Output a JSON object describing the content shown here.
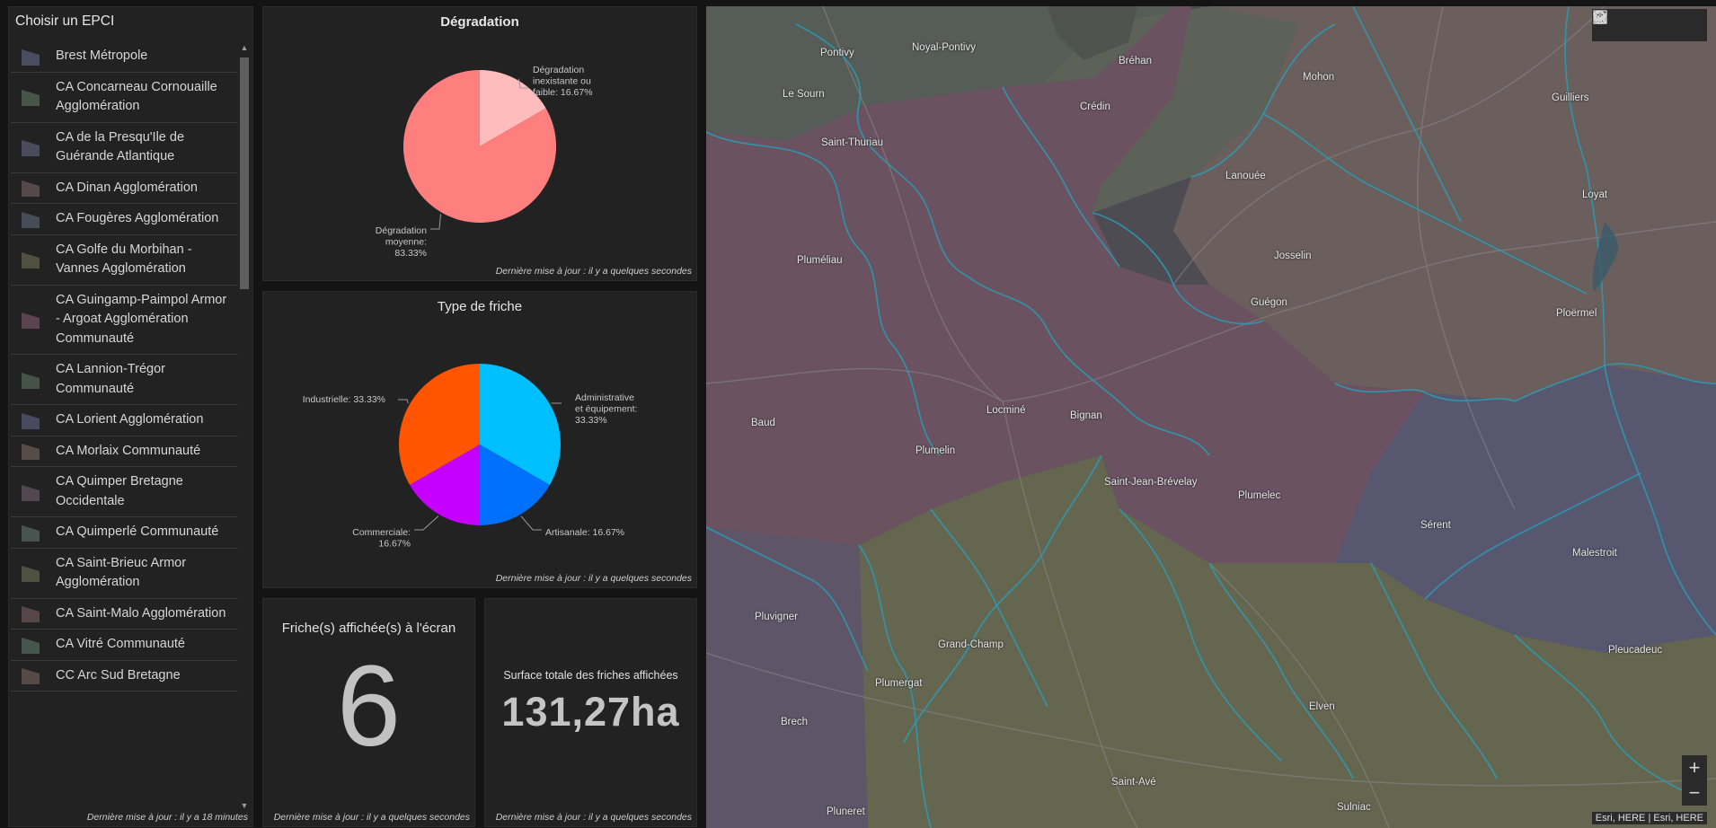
{
  "epci_panel": {
    "title": "Choisir un EPCI",
    "updated": "Dernière mise à jour : il y a 18 minutes",
    "items": [
      {
        "label": "Brest Métropole",
        "color": "#4a4c60"
      },
      {
        "label": "CA Concarneau Cornouaille Agglomération",
        "color": "#465548"
      },
      {
        "label": "CA de la Presqu'Ile de Guérande Atlantique",
        "color": "#4c4a5d"
      },
      {
        "label": "CA Dinan Agglomération",
        "color": "#55494a"
      },
      {
        "label": "CA Fougères Agglomération",
        "color": "#464d58"
      },
      {
        "label": "CA Golfe du Morbihan - Vannes Agglomération",
        "color": "#4f5040"
      },
      {
        "label": "CA Guingamp-Paimpol Armor - Argoat Agglomération Communauté",
        "color": "#5a4450"
      },
      {
        "label": "CA Lannion-Trégor Communauté",
        "color": "#465148"
      },
      {
        "label": "CA Lorient Agglomération",
        "color": "#484a5e"
      },
      {
        "label": "CA Morlaix Communauté",
        "color": "#564c48"
      },
      {
        "label": "CA Quimper Bretagne Occidentale",
        "color": "#524651"
      },
      {
        "label": "CA Quimperlé Communauté",
        "color": "#475450"
      },
      {
        "label": "CA Saint-Brieuc Armor Agglomération",
        "color": "#4e5040"
      },
      {
        "label": "CA Saint-Malo Agglomération",
        "color": "#56464a"
      },
      {
        "label": "CA Vitré Communauté",
        "color": "#44564d"
      },
      {
        "label": "CC Arc Sud Bretagne",
        "color": "#574a46"
      }
    ]
  },
  "degradation_panel": {
    "title": "Dégradation",
    "updated": "Dernière mise à jour : il y a quelques secondes"
  },
  "type_panel": {
    "title": "Type de friche",
    "updated": "Dernière mise à jour : il y a quelques secondes"
  },
  "chart_data": [
    {
      "type": "pie",
      "title": "Dégradation",
      "slices": [
        {
          "label": "Dégradation inexistante ou faible: 16.67%",
          "value": 16.67,
          "color": "#ffbcbc"
        },
        {
          "label": "Dégradation moyenne: 83.33%",
          "value": 83.33,
          "color": "#ff7f7f"
        }
      ]
    },
    {
      "type": "pie",
      "title": "Type de friche",
      "slices": [
        {
          "label": "Administrative et équipement: 33.33%",
          "value": 33.33,
          "color": "#00bfff"
        },
        {
          "label": "Artisanale: 16.67%",
          "value": 16.67,
          "color": "#0070ff"
        },
        {
          "label": "Commerciale: 16.67%",
          "value": 16.67,
          "color": "#c500ff"
        },
        {
          "label": "Industrielle: 33.33%",
          "value": 33.33,
          "color": "#ff5500"
        }
      ]
    }
  ],
  "count_panel": {
    "title": "Friche(s) affichée(s) à l'écran",
    "value": "6",
    "updated": "Dernière mise à jour : il y a quelques secondes"
  },
  "surface_panel": {
    "title": "Surface totale des friches affichées",
    "value": "131,27ha",
    "updated": "Dernière mise à jour : il y a quelques secondes"
  },
  "map": {
    "attribution": "Esri, HERE | Esri, HERE",
    "zoom_in": "+",
    "zoom_out": "−",
    "tools": [
      "search-icon",
      "home-icon",
      "layers-icon",
      "basemap-gallery-icon"
    ],
    "places": [
      "Pontivy",
      "Noyal-Pontivy",
      "Bréhan",
      "Mohon",
      "Le Sourn",
      "Crédin",
      "Guilliers",
      "Saint-Thuriau",
      "Lanouée",
      "Loyat",
      "Pluméliau",
      "Josselin",
      "Guégon",
      "Ploërmel",
      "Baud",
      "Locminé",
      "Bignan",
      "Plumelin",
      "Saint-Jean-Brévelay",
      "Plumelec",
      "Sérent",
      "Malestroit",
      "Pluvigner",
      "Grand-Champ",
      "Pleucadeuc",
      "Plumergat",
      "Elven",
      "Brech",
      "Saint-Avé",
      "Sulniac",
      "Pluneret"
    ]
  }
}
